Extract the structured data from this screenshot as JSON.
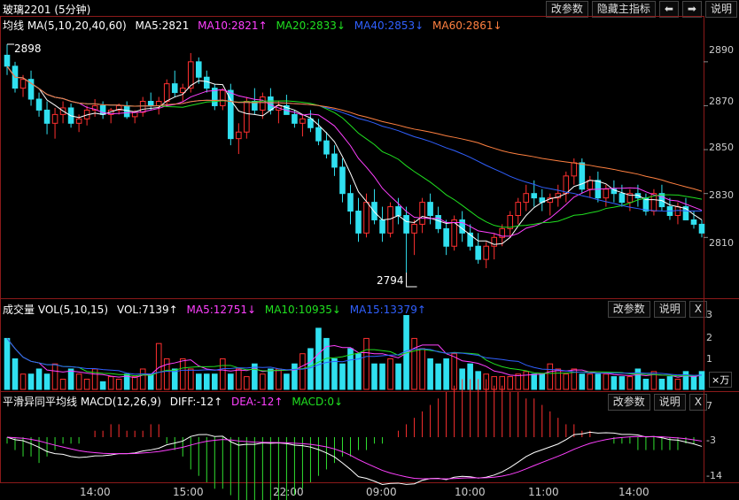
{
  "title": "玻璃2201 (5分钟)",
  "top_buttons": [
    "改参数",
    "隐藏主指标",
    "⬅",
    "➡",
    "说明"
  ],
  "colors": {
    "up": "#ff3030",
    "down": "#30e0f0",
    "ma5": "#ffffff",
    "ma10": "#ff40ff",
    "ma20": "#20e020",
    "ma40": "#3060ff",
    "ma60": "#ff8040",
    "macd_up": "#ff3030",
    "macd_down": "#30e030"
  },
  "main": {
    "legend": [
      "均线 MA(5,10,20,40,60)",
      "MA5:2821",
      "MA10:2821↑",
      "MA20:2833↓",
      "MA40:2853↓",
      "MA60:2861↓"
    ],
    "high_label": "2898",
    "low_label": "2794",
    "y_ticks": [
      "2890",
      "2870",
      "2850",
      "2830",
      "2810"
    ]
  },
  "vol": {
    "legend": [
      "成交量 VOL(5,10,15)",
      "VOL:7139↑",
      "MA5:12751↓",
      "MA10:10935↓",
      "MA15:13379↑"
    ],
    "buttons": [
      "改参数",
      "说明",
      "X"
    ],
    "y_ticks": [
      "3",
      "2",
      "1"
    ],
    "unit": "×万"
  },
  "macd": {
    "legend": [
      "平滑异同平均线 MACD(12,26,9)",
      "DIFF:-12↑",
      "DEA:-12↑",
      "MACD:0↓"
    ],
    "buttons": [
      "改参数",
      "说明",
      "X"
    ],
    "y_ticks": [
      "7",
      "-3",
      "-14"
    ]
  },
  "time_labels": [
    "14:00",
    "15:00",
    "22:00",
    "09:00",
    "10:00",
    "11:00",
    "14:00"
  ],
  "chart_data": {
    "type": "candlestick",
    "x_labels": [
      "14:00",
      "15:00",
      "22:00",
      "09:00",
      "10:00",
      "11:00",
      "14:00"
    ],
    "ohlc": [
      [
        2893,
        2898,
        2884,
        2888
      ],
      [
        2888,
        2890,
        2876,
        2878
      ],
      [
        2878,
        2884,
        2874,
        2882
      ],
      [
        2882,
        2886,
        2870,
        2873
      ],
      [
        2873,
        2876,
        2865,
        2868
      ],
      [
        2868,
        2872,
        2857,
        2862
      ],
      [
        2862,
        2869,
        2855,
        2866
      ],
      [
        2866,
        2872,
        2862,
        2869
      ],
      [
        2869,
        2871,
        2860,
        2862
      ],
      [
        2862,
        2866,
        2858,
        2864
      ],
      [
        2864,
        2870,
        2861,
        2868
      ],
      [
        2868,
        2873,
        2865,
        2870
      ],
      [
        2870,
        2872,
        2864,
        2866
      ],
      [
        2866,
        2869,
        2862,
        2868
      ],
      [
        2868,
        2871,
        2866,
        2870
      ],
      [
        2870,
        2872,
        2864,
        2865
      ],
      [
        2865,
        2868,
        2862,
        2867
      ],
      [
        2867,
        2874,
        2865,
        2872
      ],
      [
        2872,
        2876,
        2868,
        2870
      ],
      [
        2870,
        2874,
        2866,
        2872
      ],
      [
        2872,
        2882,
        2870,
        2880
      ],
      [
        2880,
        2886,
        2874,
        2876
      ],
      [
        2876,
        2880,
        2872,
        2878
      ],
      [
        2878,
        2894,
        2876,
        2890
      ],
      [
        2890,
        2892,
        2880,
        2883
      ],
      [
        2883,
        2886,
        2876,
        2878
      ],
      [
        2878,
        2880,
        2868,
        2870
      ],
      [
        2870,
        2878,
        2868,
        2877
      ],
      [
        2877,
        2880,
        2852,
        2855
      ],
      [
        2855,
        2862,
        2848,
        2858
      ],
      [
        2858,
        2874,
        2855,
        2872
      ],
      [
        2872,
        2878,
        2866,
        2868
      ],
      [
        2868,
        2876,
        2864,
        2874
      ],
      [
        2874,
        2878,
        2866,
        2868
      ],
      [
        2868,
        2872,
        2862,
        2870
      ],
      [
        2870,
        2875,
        2866,
        2866
      ],
      [
        2866,
        2868,
        2860,
        2862
      ],
      [
        2862,
        2866,
        2856,
        2864
      ],
      [
        2864,
        2868,
        2858,
        2860
      ],
      [
        2860,
        2864,
        2852,
        2854
      ],
      [
        2854,
        2858,
        2846,
        2848
      ],
      [
        2848,
        2852,
        2838,
        2842
      ],
      [
        2842,
        2846,
        2826,
        2830
      ],
      [
        2830,
        2834,
        2816,
        2822
      ],
      [
        2822,
        2828,
        2808,
        2812
      ],
      [
        2812,
        2830,
        2810,
        2826
      ],
      [
        2826,
        2832,
        2816,
        2818
      ],
      [
        2818,
        2824,
        2808,
        2812
      ],
      [
        2812,
        2826,
        2810,
        2824
      ],
      [
        2824,
        2828,
        2816,
        2820
      ],
      [
        2820,
        2824,
        2794,
        2812
      ],
      [
        2812,
        2818,
        2802,
        2816
      ],
      [
        2816,
        2828,
        2812,
        2826
      ],
      [
        2826,
        2830,
        2816,
        2820
      ],
      [
        2820,
        2824,
        2812,
        2814
      ],
      [
        2814,
        2818,
        2802,
        2806
      ],
      [
        2806,
        2820,
        2804,
        2818
      ],
      [
        2818,
        2822,
        2808,
        2812
      ],
      [
        2812,
        2816,
        2804,
        2806
      ],
      [
        2806,
        2812,
        2798,
        2800
      ],
      [
        2800,
        2808,
        2796,
        2806
      ],
      [
        2806,
        2812,
        2800,
        2810
      ],
      [
        2810,
        2816,
        2806,
        2814
      ],
      [
        2814,
        2822,
        2810,
        2820
      ],
      [
        2820,
        2828,
        2816,
        2826
      ],
      [
        2826,
        2834,
        2822,
        2830
      ],
      [
        2830,
        2836,
        2824,
        2828
      ],
      [
        2828,
        2832,
        2822,
        2826
      ],
      [
        2826,
        2830,
        2820,
        2828
      ],
      [
        2828,
        2834,
        2824,
        2830
      ],
      [
        2830,
        2840,
        2826,
        2838
      ],
      [
        2838,
        2846,
        2834,
        2844
      ],
      [
        2844,
        2846,
        2830,
        2832
      ],
      [
        2832,
        2838,
        2828,
        2836
      ],
      [
        2836,
        2840,
        2826,
        2828
      ],
      [
        2828,
        2834,
        2824,
        2832
      ],
      [
        2832,
        2836,
        2826,
        2830
      ],
      [
        2830,
        2834,
        2824,
        2826
      ],
      [
        2826,
        2832,
        2822,
        2830
      ],
      [
        2830,
        2834,
        2824,
        2828
      ],
      [
        2828,
        2830,
        2820,
        2822
      ],
      [
        2822,
        2832,
        2820,
        2830
      ],
      [
        2830,
        2834,
        2822,
        2824
      ],
      [
        2824,
        2828,
        2818,
        2820
      ],
      [
        2820,
        2826,
        2816,
        2824
      ],
      [
        2824,
        2828,
        2818,
        2818
      ],
      [
        2818,
        2822,
        2814,
        2816
      ],
      [
        2816,
        2818,
        2810,
        2812
      ]
    ],
    "volume": [
      2.0,
      1.2,
      0.6,
      0.6,
      0.8,
      0.6,
      1.0,
      0.4,
      0.8,
      0.6,
      0.4,
      0.8,
      0.3,
      0.5,
      0.4,
      0.6,
      0.5,
      0.8,
      0.6,
      1.8,
      1.2,
      0.8,
      1.2,
      0.8,
      0.6,
      0.6,
      0.6,
      1.2,
      0.6,
      0.8,
      0.5,
      1.0,
      0.6,
      0.8,
      0.8,
      0.6,
      1.0,
      1.4,
      1.6,
      2.4,
      2.0,
      1.2,
      1.0,
      1.6,
      1.4,
      2.0,
      1.0,
      1.0,
      1.2,
      1.0,
      2.9,
      2.0,
      1.6,
      1.2,
      1.0,
      1.2,
      1.4,
      0.8,
      1.0,
      0.7,
      0.6,
      0.5,
      0.5,
      0.5,
      0.6,
      0.7,
      0.6,
      0.6,
      1.0,
      0.8,
      0.6,
      0.8,
      0.6,
      0.6,
      0.6,
      0.6,
      0.5,
      0.5,
      0.5,
      0.8,
      0.4,
      0.7,
      0.4,
      0.5,
      0.4,
      0.7,
      0.5,
      0.7
    ],
    "macd_hist": [
      -1,
      -2,
      -3,
      -3,
      -4,
      -3,
      -2,
      -1,
      -1,
      -1,
      0,
      1,
      1,
      2,
      2,
      1,
      1,
      1,
      2,
      2,
      -1,
      -2,
      -3,
      -5,
      -6,
      -7,
      -8,
      -8,
      -9,
      -10,
      -11,
      -12,
      -12,
      -12,
      -11,
      -10,
      -9,
      -8,
      -7,
      -6,
      -5,
      -4,
      -3,
      -3,
      -2,
      -2,
      -1,
      -1,
      0,
      1,
      2,
      3,
      4,
      5,
      6,
      7,
      8,
      9,
      9,
      9,
      9,
      8,
      8,
      7,
      7,
      6,
      6,
      5,
      4,
      3,
      2,
      2,
      1,
      1,
      0,
      0,
      -1,
      -1,
      -1,
      -2,
      -2,
      -2,
      -2,
      -2,
      -2,
      -1,
      -1,
      0
    ]
  }
}
